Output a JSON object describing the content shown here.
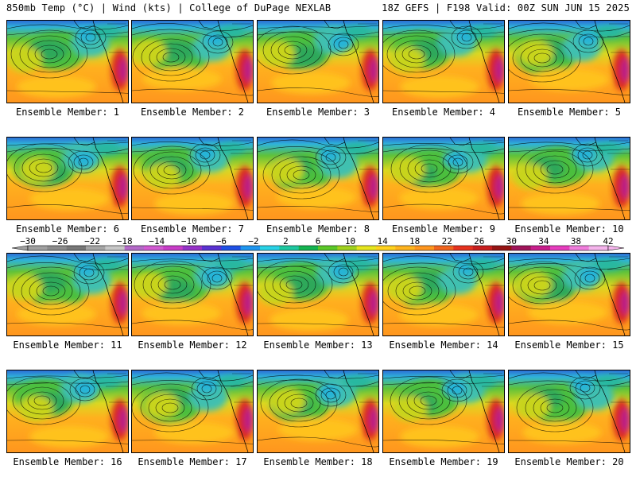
{
  "header": {
    "left": "850mb Temp (°C) | Wind (kts) | College of DuPage NEXLAB",
    "right": "18Z GEFS | F198 Valid: 00Z SUN JUN 15 2025"
  },
  "panel_label_prefix": "Ensemble Member:",
  "members": [
    {
      "number": "1"
    },
    {
      "number": "2"
    },
    {
      "number": "3"
    },
    {
      "number": "4"
    },
    {
      "number": "5"
    },
    {
      "number": "6"
    },
    {
      "number": "7"
    },
    {
      "number": "8"
    },
    {
      "number": "9"
    },
    {
      "number": "10"
    },
    {
      "number": "11"
    },
    {
      "number": "12"
    },
    {
      "number": "13"
    },
    {
      "number": "14"
    },
    {
      "number": "15"
    },
    {
      "number": "16"
    },
    {
      "number": "17"
    },
    {
      "number": "18"
    },
    {
      "number": "19"
    },
    {
      "number": "20"
    }
  ],
  "colorbar": {
    "units": "°C",
    "range": [
      -30,
      42
    ],
    "step": 4,
    "labels": [
      "−30",
      "−26",
      "−22",
      "−18",
      "−14",
      "−10",
      "−6",
      "−2",
      "2",
      "6",
      "10",
      "14",
      "18",
      "22",
      "26",
      "30",
      "34",
      "38",
      "42"
    ],
    "colors": [
      "#a0a0a0",
      "#8c8c8c",
      "#787878",
      "#a6a6a6",
      "#c8c8c8",
      "#b469c8",
      "#d25ad2",
      "#c83cc8",
      "#9632c8",
      "#5a32d2",
      "#1e50e6",
      "#1e96f0",
      "#28d2e6",
      "#1ec8a0",
      "#14b450",
      "#5ac828",
      "#a0d21e",
      "#e6e61e",
      "#ffd21e",
      "#ffb41e",
      "#ff961e",
      "#f0641e",
      "#e6321e",
      "#c81e1e",
      "#961414",
      "#a0145a",
      "#c81e8c",
      "#e63cbe",
      "#f07ddc",
      "#f5b4ec"
    ]
  }
}
